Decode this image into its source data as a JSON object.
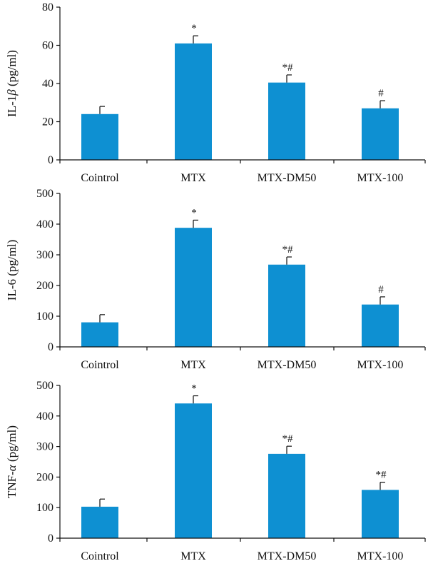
{
  "chart_data": [
    {
      "type": "bar",
      "ylabel": {
        "prefix": "IL-1",
        "italic": "β",
        "suffix": " (pg/ml)"
      },
      "ylim": [
        0,
        80
      ],
      "yticks": [
        0,
        20,
        40,
        60,
        80
      ],
      "categories": [
        "Cointrol",
        "MTX",
        "MTX-DM50",
        "MTX-100"
      ],
      "values": [
        24,
        61,
        40.5,
        27
      ],
      "errors": [
        4,
        4,
        4,
        4
      ],
      "annotations": [
        "",
        "*",
        "*#",
        "#"
      ],
      "color": "#0e90d2"
    },
    {
      "type": "bar",
      "ylabel": {
        "prefix": "IL-6 (pg/ml)",
        "italic": "",
        "suffix": ""
      },
      "ylim": [
        0,
        500
      ],
      "yticks": [
        0,
        100,
        200,
        300,
        400,
        500
      ],
      "categories": [
        "Cointrol",
        "MTX",
        "MTX-DM50",
        "MTX-100"
      ],
      "values": [
        80,
        388,
        268,
        138
      ],
      "errors": [
        25,
        25,
        25,
        25
      ],
      "annotations": [
        "",
        "*",
        "*#",
        "#"
      ],
      "color": "#0e90d2"
    },
    {
      "type": "bar",
      "ylabel": {
        "prefix": "TNF-",
        "italic": "α",
        "suffix": " (pg/ml)"
      },
      "ylim": [
        0,
        500
      ],
      "yticks": [
        0,
        100,
        200,
        300,
        400,
        500
      ],
      "categories": [
        "Cointrol",
        "MTX",
        "MTX-DM50",
        "MTX-100"
      ],
      "values": [
        103,
        441,
        276,
        158
      ],
      "errors": [
        25,
        25,
        25,
        25
      ],
      "annotations": [
        "",
        "*",
        "*#",
        "*#"
      ],
      "color": "#0e90d2"
    }
  ]
}
